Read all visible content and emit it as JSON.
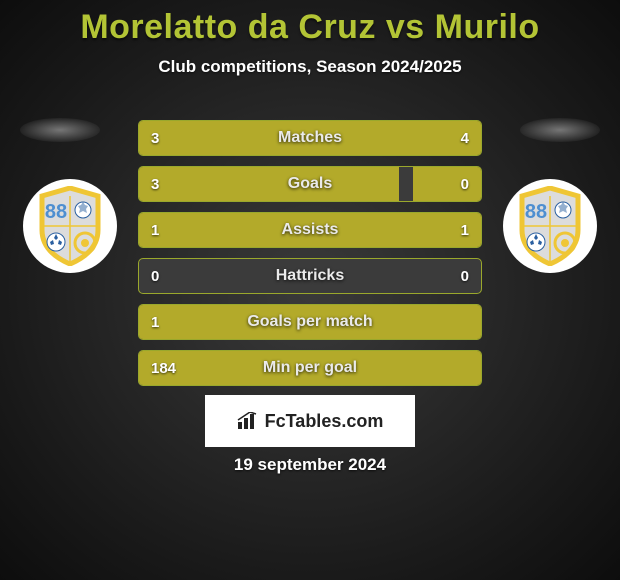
{
  "colors": {
    "accent": "#b3c435",
    "fill": "#b3aa2a",
    "row_bg": "#3b3b3b",
    "row_border": "#9aa82c",
    "badge_ring": "#efc635",
    "badge_body": "#dcdcdc",
    "badge_number_bg": "#4e8fd1",
    "title_color": "#b3c435",
    "text_white": "#ffffff"
  },
  "title": "Morelatto da Cruz vs Murilo",
  "subtitle": "Club competitions, Season 2024/2025",
  "badge_number": "88",
  "rows": [
    {
      "label": "Matches",
      "left": "3",
      "right": "4",
      "left_pct": 40,
      "right_pct": 60
    },
    {
      "label": "Goals",
      "left": "3",
      "right": "0",
      "left_pct": 76,
      "right_pct": 20
    },
    {
      "label": "Assists",
      "left": "1",
      "right": "1",
      "left_pct": 50,
      "right_pct": 50
    },
    {
      "label": "Hattricks",
      "left": "0",
      "right": "0",
      "left_pct": 0,
      "right_pct": 0
    },
    {
      "label": "Goals per match",
      "left": "1",
      "right": "",
      "left_pct": 100,
      "right_pct": 0
    },
    {
      "label": "Min per goal",
      "left": "184",
      "right": "",
      "left_pct": 100,
      "right_pct": 0
    }
  ],
  "brand": "FcTables.com",
  "date": "19 september 2024"
}
